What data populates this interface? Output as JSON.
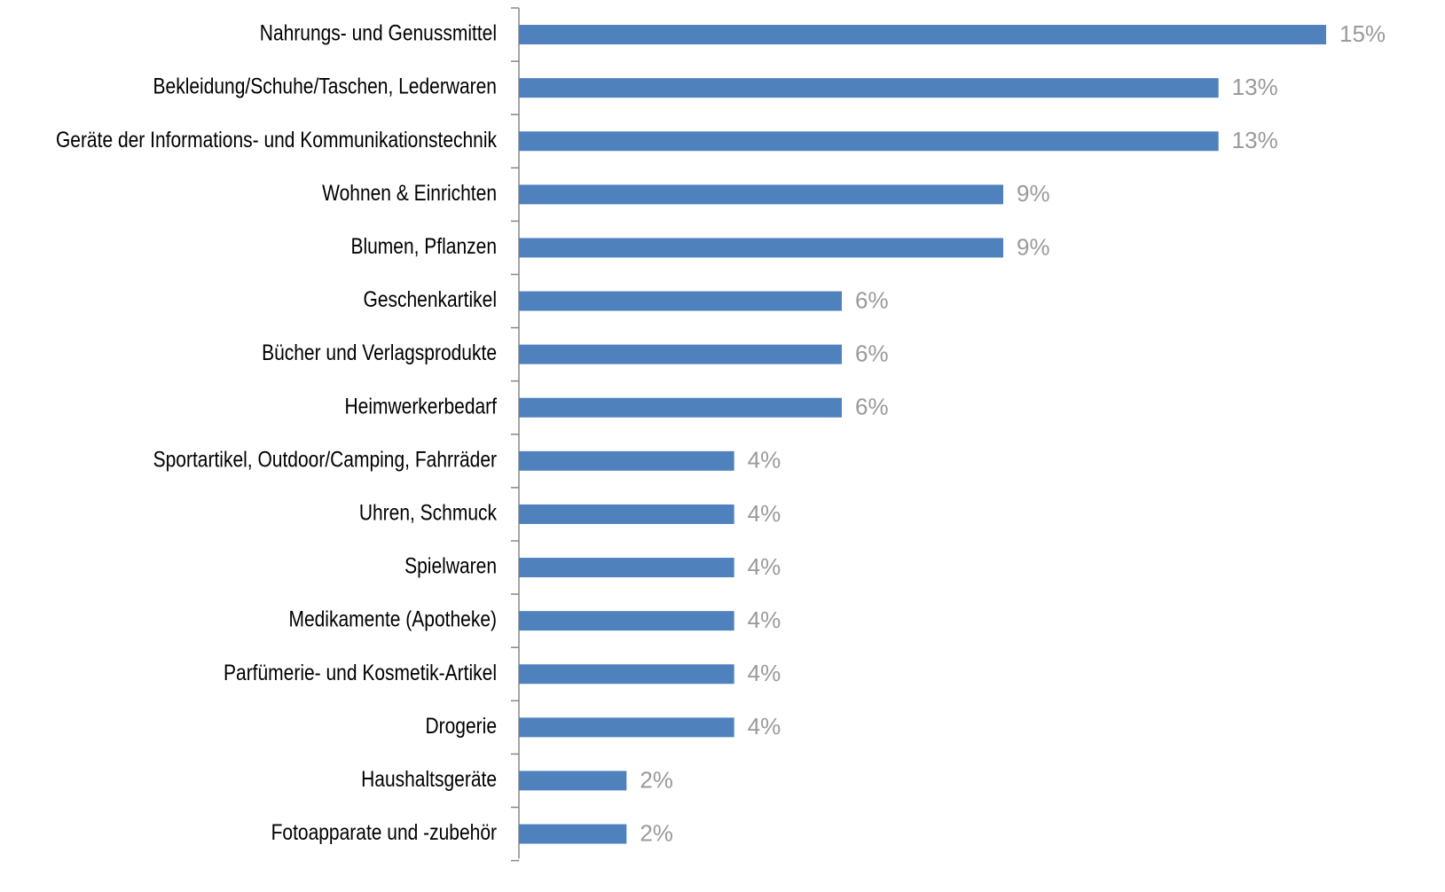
{
  "chart_data": {
    "type": "bar",
    "orientation": "horizontal",
    "categories": [
      "Nahrungs- und Genussmittel",
      "Bekleidung/Schuhe/Taschen, Lederwaren",
      "Geräte der Informations- und Kommunikationstechnik",
      "Wohnen & Einrichten",
      "Blumen, Pflanzen",
      "Geschenkartikel",
      "Bücher und Verlagsprodukte ",
      "Heimwerkerbedarf",
      "Sportartikel, Outdoor/Camping, Fahrräder",
      "Uhren, Schmuck",
      "Spielwaren",
      "Medikamente (Apotheke)",
      "Parfümerie- und Kosmetik-Artikel",
      "Drogerie",
      "Haushaltsgeräte",
      "Fotoapparate und -zubehör"
    ],
    "values": [
      15,
      13,
      13,
      9,
      9,
      6,
      6,
      6,
      4,
      4,
      4,
      4,
      4,
      4,
      2,
      2
    ],
    "value_labels": [
      "15%",
      "13%",
      "13%",
      "9%",
      "9%",
      "6%",
      "6%",
      "6%",
      "4%",
      "4%",
      "4%",
      "4%",
      "4%",
      "4%",
      "2%",
      "2%"
    ],
    "color": "#4f81bd"
  }
}
